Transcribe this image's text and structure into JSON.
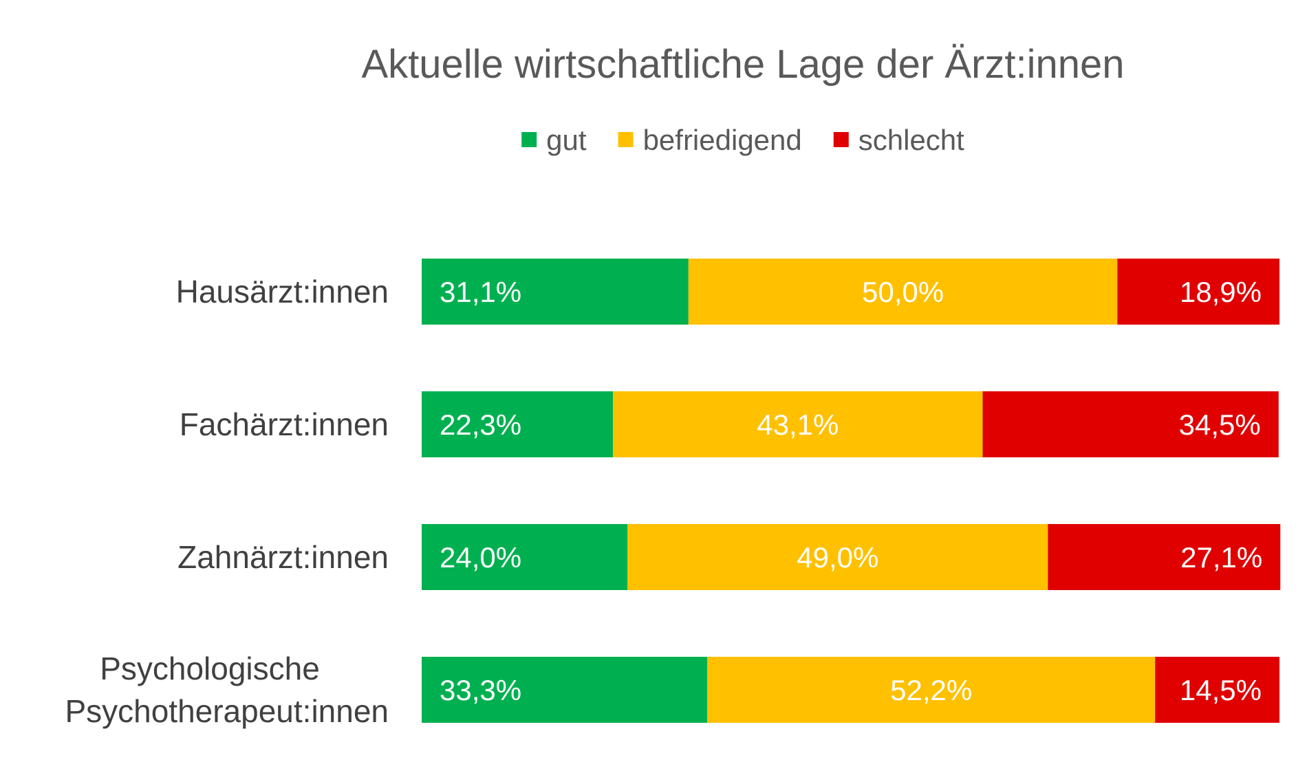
{
  "chart_data": {
    "type": "bar",
    "orientation": "horizontal",
    "stacked": true,
    "title": "Aktuelle wirtschaftliche Lage der Ärzt:innen",
    "legend_position": "top",
    "grid": false,
    "xlim": [
      0,
      100
    ],
    "categories": [
      [
        "Hausärzt:innen"
      ],
      [
        "Fachärzt:innen"
      ],
      [
        "Zahnärzt:innen"
      ],
      [
        "Psychologische",
        "Psychotherapeut:innen"
      ]
    ],
    "series": [
      {
        "name": "gut",
        "color": "#00B050",
        "values": [
          31.1,
          22.3,
          24.0,
          33.3
        ],
        "labels": [
          "31,1%",
          "22,3%",
          "24,0%",
          "33,3%"
        ]
      },
      {
        "name": "befriedigend",
        "color": "#FFC000",
        "values": [
          50.0,
          43.1,
          49.0,
          52.2
        ],
        "labels": [
          "50,0%",
          "43,1%",
          "49,0%",
          "52,2%"
        ]
      },
      {
        "name": "schlecht",
        "color": "#E00000",
        "values": [
          18.9,
          34.5,
          27.1,
          14.5
        ],
        "labels": [
          "18,9%",
          "34,5%",
          "27,1%",
          "14,5%"
        ]
      }
    ]
  }
}
